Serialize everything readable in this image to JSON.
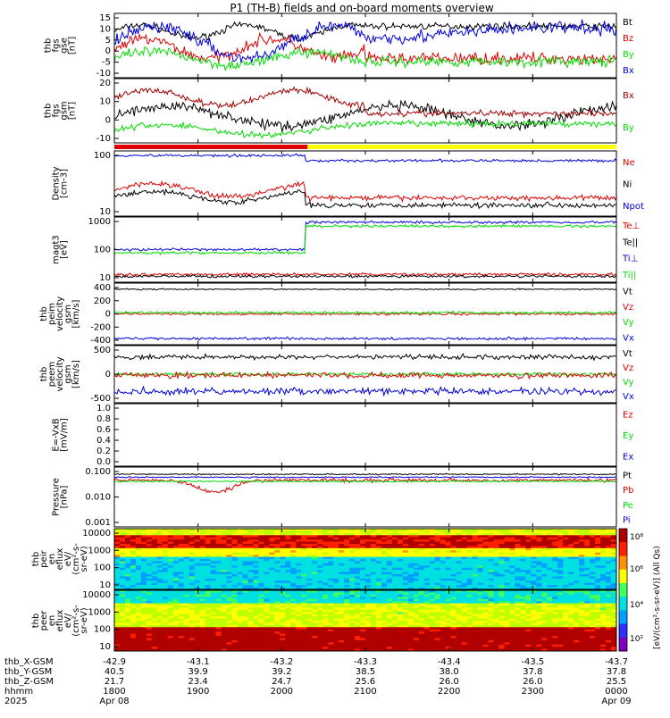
{
  "title": "P1 (TH-B) fields and on-board moments overview",
  "colors": {
    "black": "#000000",
    "red": "#e00000",
    "green": "#00dd00",
    "blue": "#0000dd",
    "darkred": "#a00000",
    "yellow": "#ffff00"
  },
  "chart_data": {
    "type": "line",
    "x_time_range": [
      "1800",
      "0000"
    ],
    "panels": [
      {
        "id": "fgs-gse",
        "ylabel": [
          "thb",
          "fgs",
          "gse",
          "[nT]"
        ],
        "yticks": [
          "15",
          "10",
          "5",
          "0",
          "-5",
          "-10"
        ],
        "ylim": [
          -12,
          16
        ],
        "legend": [
          {
            "name": "Bt",
            "color": "black"
          },
          {
            "name": "Bz",
            "color": "red"
          },
          {
            "name": "By",
            "color": "green"
          },
          {
            "name": "Bx",
            "color": "blue"
          }
        ]
      },
      {
        "id": "fgs-gsm",
        "ylabel": [
          "thb",
          "fgs",
          "gsm",
          "[nT]"
        ],
        "yticks": [
          "20",
          "10",
          "0",
          "-10"
        ],
        "ylim": [
          -17,
          24
        ],
        "legend": [
          {
            "name": "Bx",
            "color": "darkred"
          },
          {
            "name": "By",
            "color": "green"
          }
        ]
      },
      {
        "id": "density",
        "ylabel": [
          "Density",
          "[cm-3]"
        ],
        "yticks": [
          "100",
          "10"
        ],
        "log": true,
        "legend": [
          {
            "name": "Ne",
            "color": "red"
          },
          {
            "name": "Ni",
            "color": "black"
          },
          {
            "name": "Npot",
            "color": "blue"
          }
        ]
      },
      {
        "id": "temp",
        "ylabel": [
          "magt3",
          "[eV]"
        ],
        "yticks": [
          "1000",
          "100",
          "10"
        ],
        "log": true,
        "legend": [
          {
            "name": "Te⊥",
            "color": "red"
          },
          {
            "name": "Te||",
            "color": "black"
          },
          {
            "name": "Ti⊥",
            "color": "blue"
          },
          {
            "name": "Ti||",
            "color": "green"
          }
        ]
      },
      {
        "id": "peim",
        "ylabel": [
          "thb",
          "peim",
          "velocity",
          "gsm",
          "[km/s]"
        ],
        "yticks": [
          "400",
          "200",
          "0",
          "-200",
          "-400"
        ],
        "ylim": [
          -500,
          500
        ],
        "legend": [
          {
            "name": "Vt",
            "color": "black"
          },
          {
            "name": "Vz",
            "color": "red"
          },
          {
            "name": "Vy",
            "color": "green"
          },
          {
            "name": "Vx",
            "color": "blue"
          }
        ]
      },
      {
        "id": "peem",
        "ylabel": [
          "thb",
          "peem",
          "velocity",
          "gsm",
          "[km/s]"
        ],
        "yticks": [
          "500",
          "0",
          "-500"
        ],
        "ylim": [
          -700,
          700
        ],
        "legend": [
          {
            "name": "Vt",
            "color": "black"
          },
          {
            "name": "Vz",
            "color": "red"
          },
          {
            "name": "Vy",
            "color": "green"
          },
          {
            "name": "Vx",
            "color": "blue"
          }
        ]
      },
      {
        "id": "efield",
        "ylabel": [
          "E=-VxB",
          "[mV/m]"
        ],
        "yticks": [
          "1.0",
          "0.8",
          "0.6",
          "0.4",
          "0.2",
          "0.0"
        ],
        "ylim": [
          -0.05,
          1.05
        ],
        "legend": [
          {
            "name": "Ez",
            "color": "red"
          },
          {
            "name": "Ey",
            "color": "green"
          },
          {
            "name": "Ex",
            "color": "blue"
          }
        ]
      },
      {
        "id": "pressure",
        "ylabel": [
          "Pressure",
          "[nPa]"
        ],
        "yticks": [
          "0.100",
          "0.010",
          "0.001"
        ],
        "log": true,
        "legend": [
          {
            "name": "Pt",
            "color": "black"
          },
          {
            "name": "Pb",
            "color": "red"
          },
          {
            "name": "Pe",
            "color": "green"
          },
          {
            "name": "Pi",
            "color": "blue"
          }
        ]
      },
      {
        "id": "peir",
        "ylabel": [
          "thb",
          "peir",
          "en",
          "eflux",
          "eV/",
          "(cm²-s-",
          "sr-eV)"
        ],
        "yticks": [
          "10000",
          "1000",
          "100",
          "10"
        ],
        "spectrogram": true
      },
      {
        "id": "peer",
        "ylabel": [
          "thb",
          "peer",
          "en",
          "eflux",
          "eV/",
          "(cm²-s-",
          "sr-eV)"
        ],
        "yticks": [
          "10000",
          "1000",
          "100",
          "10"
        ],
        "spectrogram": true
      }
    ],
    "colorbar": {
      "label": "[eV/(cm²-s-sr-eV)] (All Qs)",
      "ticks": [
        "10⁸",
        "10⁶",
        "10⁴",
        "10²"
      ]
    },
    "x_rows": [
      {
        "label": "thb_X-GSM",
        "values": [
          "-42.9",
          "-43.1",
          "-43.2",
          "-43.3",
          "-43.4",
          "-43.5",
          "-43.7"
        ]
      },
      {
        "label": "thb_Y-GSM",
        "values": [
          "40.5",
          "39.9",
          "39.2",
          "38.5",
          "38.0",
          "37.8",
          "37.8"
        ]
      },
      {
        "label": "thb_Z-GSM",
        "values": [
          "21.7",
          "23.4",
          "24.7",
          "25.6",
          "26.0",
          "26.0",
          "25.5"
        ]
      },
      {
        "label": "hhmm",
        "values": [
          "1800",
          "1900",
          "2000",
          "2100",
          "2200",
          "2300",
          "0000"
        ]
      },
      {
        "label": "2025",
        "values": [
          "Apr 08",
          "",
          "",
          "",
          "",
          "",
          "Apr 09"
        ]
      }
    ],
    "mode_bar": {
      "red_fraction": 0.385,
      "colors": [
        "red",
        "yellow"
      ]
    }
  }
}
